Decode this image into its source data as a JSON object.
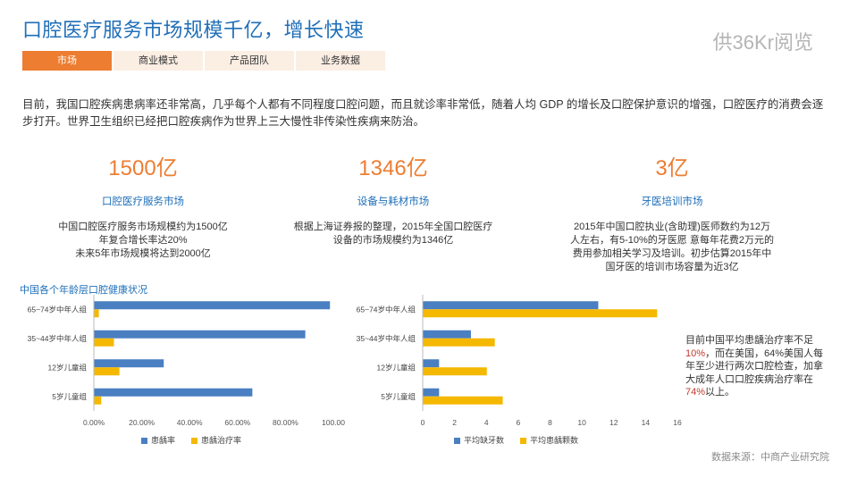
{
  "page": {
    "title": "口腔医疗服务市场规模千亿，增长快速",
    "watermark": "供36Kr阅览",
    "tabs": [
      {
        "label": "市场",
        "active": true
      },
      {
        "label": "商业模式",
        "active": false
      },
      {
        "label": "产品团队",
        "active": false
      },
      {
        "label": "业务数据",
        "active": false
      }
    ],
    "intro": "目前，我国口腔疾病患病率还非常高，几乎每个人都有不同程度口腔问题，而且就诊率非常低，随着人均 GDP 的增长及口腔保护意识的增强，口腔医疗的消费会逐步打开。世界卫生组织已经把口腔疾病作为世界上三大慢性非传染性疾病来防治。",
    "stats": [
      {
        "value": "1500亿",
        "label": "口腔医疗服务市场",
        "desc": "中国口腔医疗服务市场规模约为1500亿\n年复合增长率达20%\n未来5年市场规模将达到2000亿"
      },
      {
        "value": "1346亿",
        "label": "设备与耗材市场",
        "desc": "根据上海证券报的整理，2015年全国口腔医疗\n设备的市场规模约为1346亿"
      },
      {
        "value": "3亿",
        "label": "牙医培训市场",
        "desc": "2015年中国口腔执业(含助理)医师数约为12万\n人左右，有5-10%的牙医愿 意每年花费2万元的\n费用参加相关学习及培训。初步估算2015年中\n国牙医的培训市场容量为近3亿"
      }
    ],
    "chart_section_title": "中国各个年龄层口腔健康状况",
    "note_parts": {
      "p1": "目前中国平均患龋治疗率不足",
      "hl1": "10%",
      "p2": "，而在美国，64%美国人每年至少进行两次口腔检查，加拿大成年人口口腔疾病治疗率在",
      "hl2": "74%",
      "p3": "以上。"
    },
    "source": "数据来源：中商产业研究院",
    "colors": {
      "accent": "#ed7d31",
      "title_blue": "#1f6fb8",
      "series_blue": "#4a7fc1",
      "series_yellow": "#f5b800"
    }
  },
  "chart_data": [
    {
      "type": "bar",
      "orientation": "horizontal",
      "categories": [
        "65~74岁中年人组",
        "35~44岁中年人组",
        "12岁儿童组",
        "5岁儿童组"
      ],
      "series": [
        {
          "name": "患龋率",
          "values": [
            98.4,
            88.1,
            29.0,
            66.0
          ],
          "color": "#4a7fc1"
        },
        {
          "name": "患龋治疗率",
          "values": [
            1.9,
            8.2,
            10.5,
            2.9
          ],
          "color": "#f5b800"
        }
      ],
      "xlim": [
        0,
        100
      ],
      "xticks": [
        0,
        20,
        40,
        60,
        80,
        100
      ],
      "tick_labels": [
        "0.00%",
        "20.00%",
        "40.00%",
        "60.00%",
        "80.00%",
        "100.00"
      ],
      "legend": "bottom"
    },
    {
      "type": "bar",
      "orientation": "horizontal",
      "categories": [
        "65~74岁中年人组",
        "35~44岁中年人组",
        "12岁儿童组",
        "5岁儿童组"
      ],
      "series": [
        {
          "name": "平均缺牙数",
          "values": [
            11.0,
            3.0,
            1.0,
            1.0
          ],
          "color": "#4a7fc1"
        },
        {
          "name": "平均患龋颗数",
          "values": [
            14.7,
            4.5,
            4.0,
            5.0
          ],
          "color": "#f5b800"
        }
      ],
      "xlim": [
        0,
        16
      ],
      "xticks": [
        0,
        2,
        4,
        6,
        8,
        10,
        12,
        14,
        16
      ],
      "tick_labels": [
        "0",
        "2",
        "4",
        "6",
        "8",
        "10",
        "12",
        "14",
        "16"
      ],
      "legend": "bottom"
    }
  ]
}
